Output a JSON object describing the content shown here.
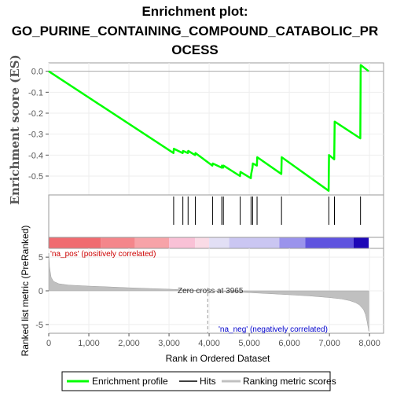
{
  "chart_data": {
    "type": "line",
    "title": "Enrichment plot:",
    "subtitle_line1": "GO_PURINE_CONTAINING_COMPOUND_CATABOLIC_PR",
    "subtitle_line2": "OCESS",
    "top_panel": {
      "ylabel": "Enrichment score (ES)",
      "ylim": [
        -0.59,
        0.04
      ],
      "yticks": [
        "0.0",
        "-0.1",
        "-0.2",
        "-0.3",
        "-0.4",
        "-0.5"
      ],
      "yticks_values": [
        0.0,
        -0.1,
        -0.2,
        -0.3,
        -0.4,
        -0.5
      ],
      "series": [
        {
          "name": "Enrichment profile",
          "color": "#00ff00",
          "x": [
            0,
            3110,
            3120,
            3340,
            3350,
            3470,
            3480,
            3650,
            3660,
            4080,
            4090,
            4310,
            4320,
            4350,
            4360,
            4770,
            4780,
            5040,
            5050,
            5080,
            5090,
            5190,
            5200,
            5800,
            5810,
            6980,
            6990,
            7120,
            7130,
            7770,
            7780,
            7980
          ],
          "y": [
            0.0,
            -0.39,
            -0.37,
            -0.39,
            -0.38,
            -0.39,
            -0.38,
            -0.4,
            -0.39,
            -0.45,
            -0.44,
            -0.46,
            -0.45,
            -0.46,
            -0.45,
            -0.5,
            -0.48,
            -0.51,
            -0.49,
            -0.46,
            -0.44,
            -0.45,
            -0.41,
            -0.49,
            -0.41,
            -0.57,
            -0.4,
            -0.42,
            -0.24,
            -0.32,
            0.03,
            0.0
          ]
        }
      ],
      "baseline_color": "#aaaaaa"
    },
    "hits_panel": {
      "hit_positions": [
        3115,
        3345,
        3475,
        3655,
        4085,
        4315,
        4355,
        4775,
        5045,
        5085,
        5195,
        5805,
        6985,
        7125,
        7775
      ],
      "hit_color": "#000000"
    },
    "color_band": {
      "segments": [
        {
          "from": 0,
          "to": 1300,
          "color": "#f06b70"
        },
        {
          "from": 1300,
          "to": 2150,
          "color": "#f4868b"
        },
        {
          "from": 2150,
          "to": 3000,
          "color": "#f7a3a8"
        },
        {
          "from": 3000,
          "to": 3650,
          "color": "#f9c1d6"
        },
        {
          "from": 3650,
          "to": 4000,
          "color": "#fadbe6"
        },
        {
          "from": 4000,
          "to": 4500,
          "color": "#e2dff5"
        },
        {
          "from": 4500,
          "to": 5750,
          "color": "#cac6f2"
        },
        {
          "from": 5750,
          "to": 6400,
          "color": "#9a93ec"
        },
        {
          "from": 6400,
          "to": 7600,
          "color": "#5f53df"
        },
        {
          "from": 7600,
          "to": 7980,
          "color": "#1e08b7"
        }
      ]
    },
    "bottom_panel": {
      "ylabel": "Ranked list metric (PreRanked)",
      "ylim": [
        -6.3,
        6.3
      ],
      "yticks": [
        "5",
        "0",
        "-5"
      ],
      "yticks_values": [
        5,
        0,
        -5
      ],
      "metric_curve": {
        "x": [
          0,
          20,
          60,
          120,
          250,
          500,
          1000,
          1500,
          2000,
          2500,
          3000,
          3500,
          3965,
          4500,
          5000,
          5500,
          6000,
          6500,
          7000,
          7300,
          7500,
          7650,
          7750,
          7850,
          7900,
          7940,
          7970,
          7980
        ],
        "y": [
          5.6,
          3.5,
          2.0,
          1.4,
          1.05,
          0.85,
          0.7,
          0.58,
          0.46,
          0.35,
          0.24,
          0.12,
          0.0,
          -0.14,
          -0.27,
          -0.42,
          -0.58,
          -0.76,
          -1.0,
          -1.2,
          -1.45,
          -1.75,
          -2.1,
          -2.8,
          -3.5,
          -4.6,
          -5.6,
          -6.0
        ]
      },
      "fill_color": "#c0c0c0",
      "pos_label": "'na_pos' (positively correlated)",
      "neg_label": "'na_neg' (negatively correlated)",
      "zero_cross_label": "Zero cross at 3965",
      "zero_cross_x": 3965
    },
    "xlabel": "Rank in Ordered Dataset",
    "xlim": [
      0,
      8350
    ],
    "xticks": [
      "0",
      "1,000",
      "2,000",
      "3,000",
      "4,000",
      "5,000",
      "6,000",
      "7,000",
      "8,000"
    ],
    "xticks_values": [
      0,
      1000,
      2000,
      3000,
      4000,
      5000,
      6000,
      7000,
      8000
    ],
    "legend": {
      "placement": "bottom",
      "items": [
        {
          "label": "Enrichment profile",
          "color": "#00ff00"
        },
        {
          "label": "Hits",
          "color": "#000000"
        },
        {
          "label": "Ranking metric scores",
          "color": "#c0c0c0"
        }
      ]
    }
  }
}
